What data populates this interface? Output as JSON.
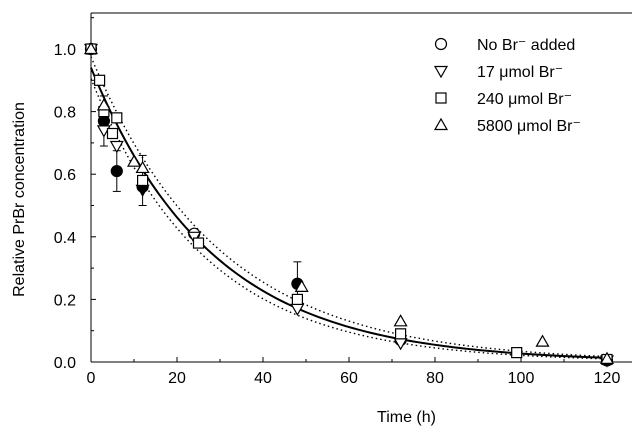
{
  "chart_data": {
    "type": "scatter",
    "title": "",
    "xlabel": "Time (h)",
    "ylabel": "Relative PrBr concentration",
    "xlim": [
      0,
      125
    ],
    "ylim": [
      0,
      1.1
    ],
    "xticks": [
      0,
      20,
      40,
      60,
      80,
      100,
      120
    ],
    "yticks": [
      0.0,
      0.2,
      0.4,
      0.6,
      0.8,
      1.0
    ],
    "xtick_labels": [
      "0",
      "20",
      "40",
      "60",
      "80",
      "100",
      "120"
    ],
    "ytick_labels": [
      "0.0",
      "0.2",
      "0.4",
      "0.6",
      "0.8",
      "1.0"
    ],
    "grid": false,
    "legend_position": "top-right",
    "series": [
      {
        "name": "No Br⁻ added",
        "marker": "circle",
        "points": [
          {
            "x": 0,
            "y": 1.0
          },
          {
            "x": 3,
            "y": 0.77,
            "err": 0.08,
            "filled": true
          },
          {
            "x": 6,
            "y": 0.61,
            "err": 0.065,
            "filled": true
          },
          {
            "x": 12,
            "y": 0.56,
            "filled": true
          },
          {
            "x": 24,
            "y": 0.41
          },
          {
            "x": 48,
            "y": 0.25,
            "err": 0.07,
            "filled": true
          },
          {
            "x": 72,
            "y": 0.07
          },
          {
            "x": 120,
            "y": 0.005
          }
        ]
      },
      {
        "name": "17 μmol Br⁻",
        "marker": "triangle-down",
        "points": [
          {
            "x": 0,
            "y": 1.0
          },
          {
            "x": 3,
            "y": 0.74
          },
          {
            "x": 6,
            "y": 0.69
          },
          {
            "x": 12,
            "y": 0.55,
            "filled": true
          },
          {
            "x": 24,
            "y": 0.4
          },
          {
            "x": 48,
            "y": 0.17
          },
          {
            "x": 72,
            "y": 0.06
          },
          {
            "x": 120,
            "y": 0.005
          }
        ]
      },
      {
        "name": "240 μmol Br⁻",
        "marker": "square",
        "points": [
          {
            "x": 0,
            "y": 1.0
          },
          {
            "x": 2,
            "y": 0.9
          },
          {
            "x": 3,
            "y": 0.8
          },
          {
            "x": 5,
            "y": 0.73
          },
          {
            "x": 6,
            "y": 0.78
          },
          {
            "x": 12,
            "y": 0.58,
            "err": 0.08
          },
          {
            "x": 25,
            "y": 0.38
          },
          {
            "x": 48,
            "y": 0.2
          },
          {
            "x": 72,
            "y": 0.09
          },
          {
            "x": 99,
            "y": 0.03
          },
          {
            "x": 120,
            "y": 0.008
          }
        ]
      },
      {
        "name": "5800 μmol Br⁻",
        "marker": "triangle-up",
        "points": [
          {
            "x": 0,
            "y": 1.0
          },
          {
            "x": 3,
            "y": 0.82
          },
          {
            "x": 10,
            "y": 0.64
          },
          {
            "x": 12,
            "y": 0.62
          },
          {
            "x": 49,
            "y": 0.24
          },
          {
            "x": 72,
            "y": 0.13
          },
          {
            "x": 105,
            "y": 0.065
          },
          {
            "x": 120,
            "y": 0.01
          }
        ]
      }
    ],
    "fit_curve": {
      "a": 0.94,
      "k": 0.0355,
      "x_start": 0,
      "x_end": 120
    },
    "confidence_band": {
      "upper_a": 0.975,
      "upper_k": 0.0335,
      "lower_a": 0.905,
      "lower_k": 0.0375
    }
  }
}
